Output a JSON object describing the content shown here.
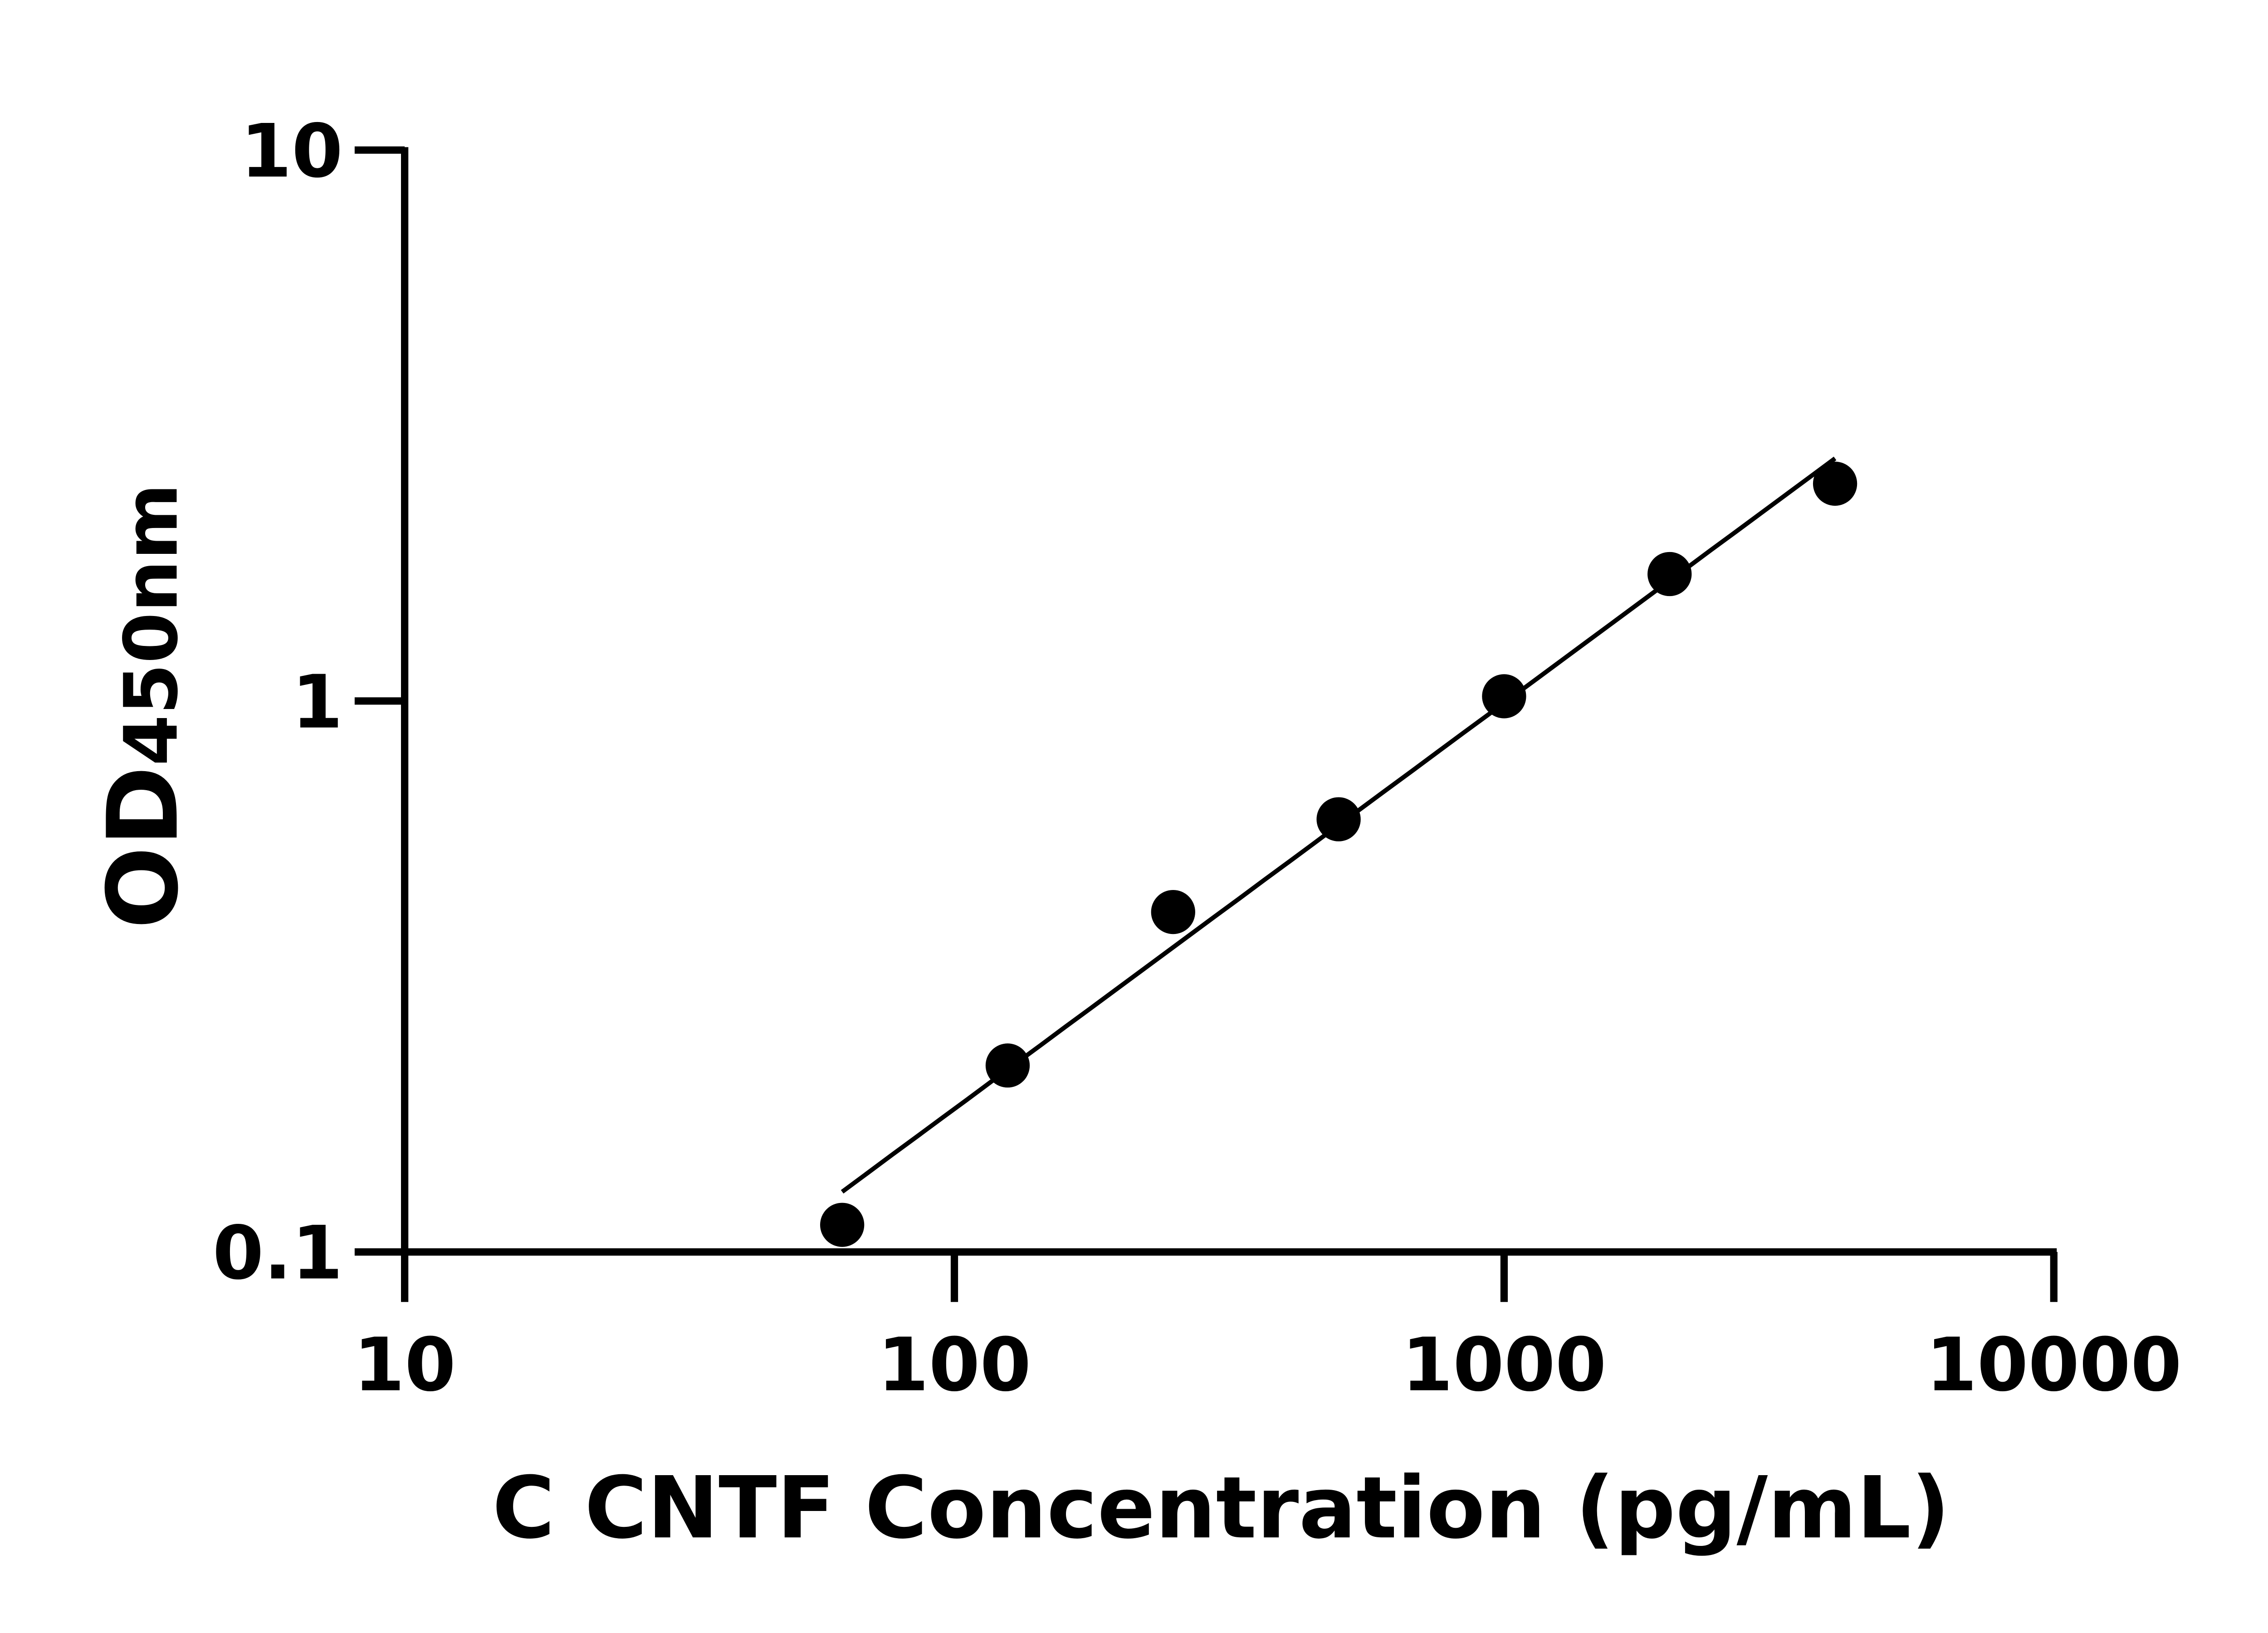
{
  "chart_data": {
    "type": "scatter",
    "title": "",
    "xlabel": "C CNTF Concentration (pg/mL)",
    "ylabel": {
      "main": "OD",
      "sub": "450nm"
    },
    "x_scale": "log",
    "y_scale": "log",
    "xlim": [
      10,
      10000
    ],
    "ylim": [
      0.1,
      10
    ],
    "x_ticks": [
      "10",
      "100",
      "1000",
      "10000"
    ],
    "y_ticks": [
      "0.1",
      "1",
      "10"
    ],
    "grid": false,
    "legend": "none",
    "series": [
      {
        "x": [
          62.5,
          125,
          250,
          500,
          1000,
          2000,
          4000
        ],
        "y": [
          0.112,
          0.218,
          0.414,
          0.61,
          1.02,
          1.7,
          2.48
        ],
        "marker": "filled-circle",
        "fit_line": true
      }
    ],
    "colors": {
      "points": "#000000",
      "line": "#000000",
      "axes": "#000000"
    }
  }
}
